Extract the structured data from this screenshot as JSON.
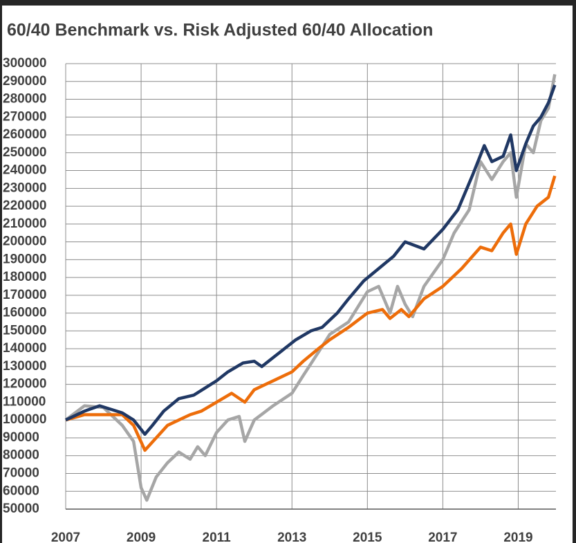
{
  "chart_data": {
    "type": "line",
    "title": "60/40 Benchmark vs. Risk Adjusted 60/40 Allocation",
    "xlim": [
      2007,
      2020
    ],
    "xticks": [
      2007,
      2009,
      2011,
      2013,
      2015,
      2017,
      2019
    ],
    "ylim": [
      50000,
      300000
    ],
    "yticks": [
      50000,
      60000,
      70000,
      80000,
      90000,
      100000,
      110000,
      120000,
      130000,
      140000,
      150000,
      160000,
      170000,
      180000,
      190000,
      200000,
      210000,
      220000,
      230000,
      240000,
      250000,
      260000,
      270000,
      280000,
      290000,
      300000
    ],
    "grid": true,
    "series": [
      {
        "color": "#a6a6a6",
        "x": [
          2007,
          2007.5,
          2008,
          2008.5,
          2008.8,
          2009,
          2009.15,
          2009.4,
          2009.7,
          2010,
          2010.3,
          2010.5,
          2010.7,
          2011,
          2011.3,
          2011.6,
          2011.75,
          2012,
          2012.5,
          2013,
          2013.3,
          2013.7,
          2014,
          2014.5,
          2015,
          2015.3,
          2015.6,
          2015.8,
          2016,
          2016.2,
          2016.5,
          2017,
          2017.3,
          2017.7,
          2018,
          2018.3,
          2018.6,
          2018.8,
          2018.95,
          2019.2,
          2019.4,
          2019.6,
          2019.8,
          2019.97
        ],
        "values": [
          100000,
          108000,
          107000,
          97000,
          88000,
          62000,
          55000,
          68000,
          76000,
          82000,
          78000,
          85000,
          80000,
          93000,
          100000,
          102000,
          88000,
          100000,
          108000,
          115000,
          125000,
          138000,
          148000,
          155000,
          172000,
          175000,
          160000,
          175000,
          165000,
          158000,
          175000,
          190000,
          205000,
          218000,
          245000,
          235000,
          245000,
          250000,
          225000,
          255000,
          250000,
          268000,
          275000,
          294000
        ]
      },
      {
        "color": "#ed6d0a",
        "x": [
          2007,
          2007.5,
          2008,
          2008.5,
          2008.8,
          2009.1,
          2009.4,
          2009.7,
          2010,
          2010.3,
          2010.6,
          2011,
          2011.4,
          2011.75,
          2012,
          2012.5,
          2013,
          2013.3,
          2013.7,
          2014,
          2014.5,
          2015,
          2015.4,
          2015.6,
          2015.9,
          2016.1,
          2016.5,
          2017,
          2017.5,
          2018,
          2018.3,
          2018.6,
          2018.8,
          2018.95,
          2019.2,
          2019.5,
          2019.8,
          2019.97
        ],
        "values": [
          100000,
          103000,
          103000,
          103000,
          97000,
          83000,
          90000,
          97000,
          100000,
          103000,
          105000,
          110000,
          115000,
          110000,
          117000,
          122000,
          127000,
          133000,
          140000,
          145000,
          152000,
          160000,
          162000,
          157000,
          162000,
          158000,
          168000,
          175000,
          185000,
          197000,
          195000,
          205000,
          210000,
          193000,
          210000,
          220000,
          225000,
          237000
        ]
      },
      {
        "color": "#203864",
        "x": [
          2007,
          2007.5,
          2007.9,
          2008.5,
          2008.8,
          2009.1,
          2009.3,
          2009.6,
          2010,
          2010.4,
          2010.7,
          2011,
          2011.3,
          2011.7,
          2012,
          2012.2,
          2012.5,
          2012.8,
          2013.1,
          2013.5,
          2013.8,
          2014.2,
          2014.5,
          2014.9,
          2015.3,
          2015.7,
          2016,
          2016.5,
          2017,
          2017.4,
          2017.8,
          2018.1,
          2018.3,
          2018.6,
          2018.8,
          2018.95,
          2019.2,
          2019.4,
          2019.6,
          2019.8,
          2019.97
        ],
        "values": [
          100000,
          105000,
          108000,
          104000,
          100000,
          92000,
          97000,
          105000,
          112000,
          114000,
          118000,
          122000,
          127000,
          132000,
          133000,
          130000,
          135000,
          140000,
          145000,
          150000,
          152000,
          160000,
          168000,
          178000,
          185000,
          192000,
          200000,
          196000,
          207000,
          218000,
          238000,
          254000,
          245000,
          248000,
          260000,
          240000,
          255000,
          265000,
          270000,
          278000,
          288000
        ]
      }
    ]
  }
}
